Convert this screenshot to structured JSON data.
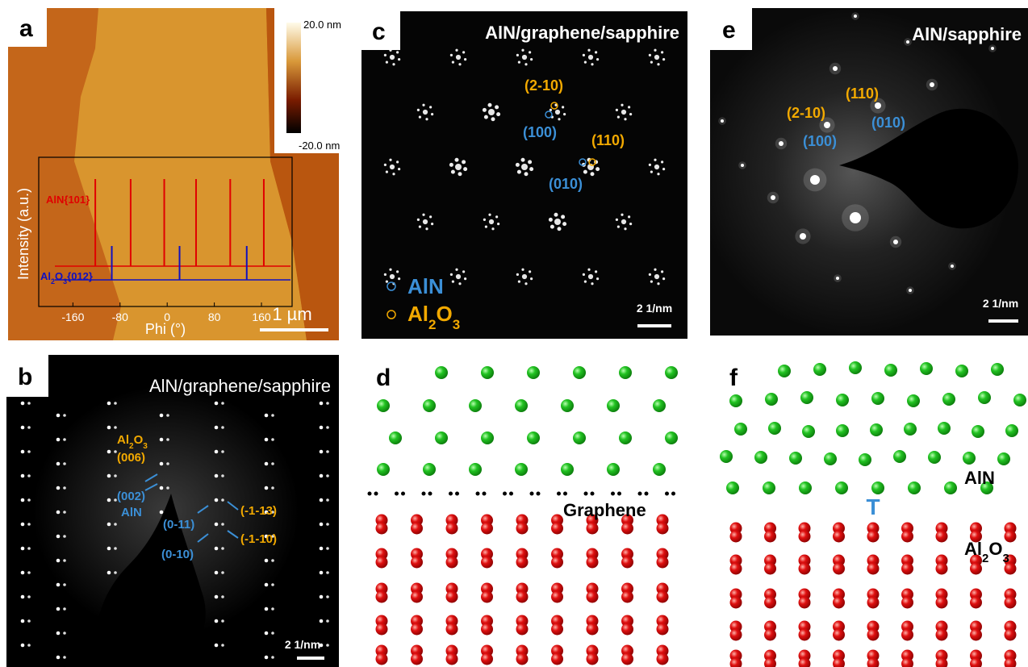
{
  "panels": {
    "a": {
      "label": "a",
      "colorbar": {
        "max": "20.0 nm",
        "min": "-20.0 nm"
      },
      "inset": {
        "y_label": "Intensity (a.u.)",
        "x_label": "Phi (°)",
        "xlim": [
          -218,
          212
        ],
        "xticks": [
          -160,
          -80,
          0,
          80,
          160
        ],
        "series": [
          {
            "name": "AlN{101}",
            "color": "#e00000",
            "peaks": [
              -122,
              -62,
              -5,
              49,
              107,
              164
            ]
          },
          {
            "name_parts": [
              "Al",
              "2",
              "O",
              "3",
              "{012}"
            ],
            "color": "#1010c0",
            "peaks": [
              -94,
              21,
              135
            ]
          }
        ]
      },
      "scale_bar": "1 µm"
    },
    "b": {
      "label": "b",
      "title": "AlN/graphene/sapphire",
      "annotations": {
        "al2o3_parts": [
          "Al",
          "2",
          "O",
          "3"
        ],
        "al2o3_index": "(006)",
        "aln_index": "(002)",
        "aln": "AlN",
        "blue_1": "(0-11)",
        "blue_2": "(0-10)",
        "orange_1": "(-1-13)",
        "orange_2": "(-1-10)"
      },
      "scale_bar": "2 1/nm"
    },
    "c": {
      "label": "c",
      "title": "AlN/graphene/sapphire",
      "annotations": {
        "o_210": "(2-10)",
        "b_100": "(100)",
        "o_110": "(110)",
        "b_010": "(010)"
      },
      "legend": {
        "aln": "AlN",
        "al2o3_parts": [
          "Al",
          "2",
          "O",
          "3"
        ]
      },
      "scale_bar": "2 1/nm"
    },
    "d": {
      "label": "d",
      "graphene": "Graphene"
    },
    "e": {
      "label": "e",
      "title": "AlN/sapphire",
      "annotations": {
        "o_210": "(2-10)",
        "o_110": "(110)",
        "b_100": "(100)",
        "b_010": "(010)"
      },
      "scale_bar": "2 1/nm"
    },
    "f": {
      "label": "f",
      "aln": "AlN",
      "dislocation": "T",
      "al2o3_parts": [
        "Al",
        "2",
        "O",
        "3"
      ]
    }
  }
}
